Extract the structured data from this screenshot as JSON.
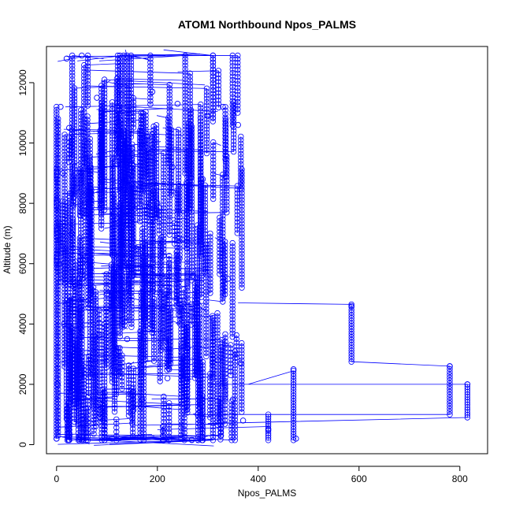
{
  "chart_data": {
    "type": "scatter",
    "title": "ATOM1 Northbound Npos_PALMS",
    "xlabel": "Npos_PALMS",
    "ylabel": "Altitude (m)",
    "xlim": [
      -20,
      855
    ],
    "ylim": [
      -300,
      13200
    ],
    "x_ticks": [
      0,
      200,
      400,
      600,
      800
    ],
    "y_ticks": [
      0,
      2000,
      4000,
      6000,
      8000,
      10000,
      12000
    ],
    "x_tick_labels": [
      "0",
      "200",
      "400",
      "600",
      "800"
    ],
    "y_tick_labels": [
      "0",
      "2000",
      "4000",
      "6000",
      "8000",
      "10000",
      "12000"
    ],
    "grid": false,
    "legend": "none",
    "marker": "open-circle",
    "connected": true,
    "series_color": "#0000ff",
    "series": [
      {
        "x": [
          0,
          2,
          5,
          8,
          12,
          15,
          20,
          25,
          30,
          35,
          40,
          50,
          60,
          70,
          80,
          90,
          100,
          110,
          120,
          130,
          140,
          150,
          160,
          170,
          180,
          190,
          200,
          210,
          220,
          230,
          240,
          250,
          260,
          270,
          280,
          290,
          300,
          310,
          320,
          330,
          340,
          350,
          360,
          365,
          370,
          420,
          470,
          475,
          585,
          780,
          815
        ],
        "y": [
          200,
          2000,
          6000,
          11200,
          9000,
          4000,
          12800,
          10500,
          7000,
          3000,
          8500,
          12900,
          6000,
          2500,
          11500,
          9500,
          5000,
          200,
          7500,
          11600,
          3500,
          9800,
          6500,
          1500,
          10200,
          11700,
          8000,
          4500,
          2200,
          9200,
          11300,
          6800,
          3200,
          5600,
          1000,
          8800,
          10900,
          4200,
          2800,
          11200,
          5500,
          1500,
          10600,
          2700,
          800,
          500,
          2500,
          200,
          4600,
          2600,
          2000
        ]
      }
    ]
  }
}
